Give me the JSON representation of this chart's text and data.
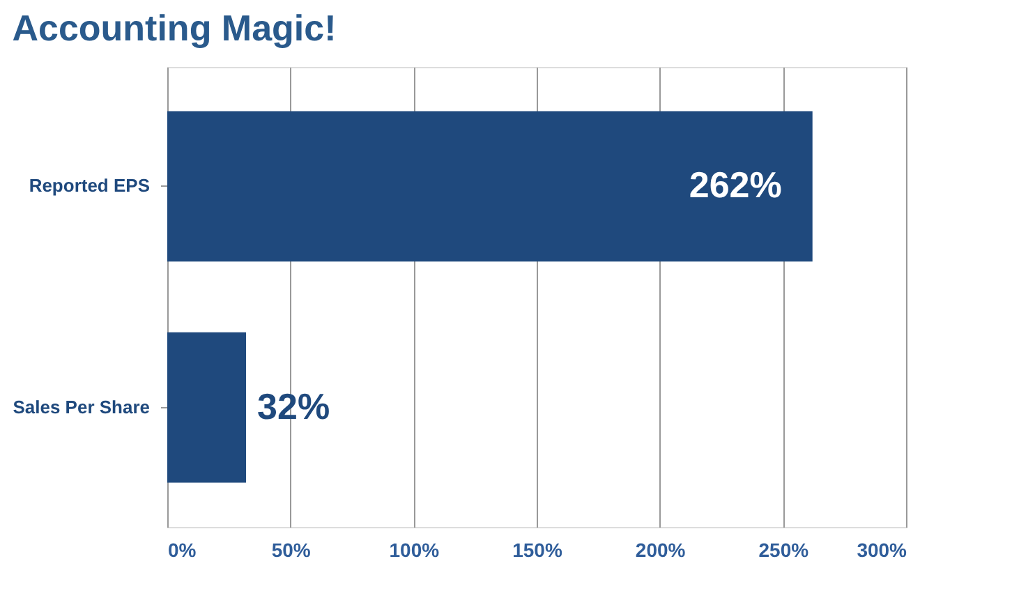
{
  "chart_data": {
    "type": "bar",
    "orientation": "horizontal",
    "title": "Accounting Magic!",
    "categories": [
      "Reported EPS",
      "Sales Per Share"
    ],
    "values": [
      262,
      32
    ],
    "value_labels": [
      "262%",
      "32%"
    ],
    "color": "#1f497d",
    "xlim": [
      0,
      300
    ],
    "xticks": [
      {
        "value": 0,
        "label": "0%"
      },
      {
        "value": 50,
        "label": "50%"
      },
      {
        "value": 100,
        "label": "100%"
      },
      {
        "value": 150,
        "label": "150%"
      },
      {
        "value": 200,
        "label": "200%"
      },
      {
        "value": 250,
        "label": "250%"
      },
      {
        "value": 300,
        "label": "300%"
      }
    ],
    "grid": "x"
  }
}
